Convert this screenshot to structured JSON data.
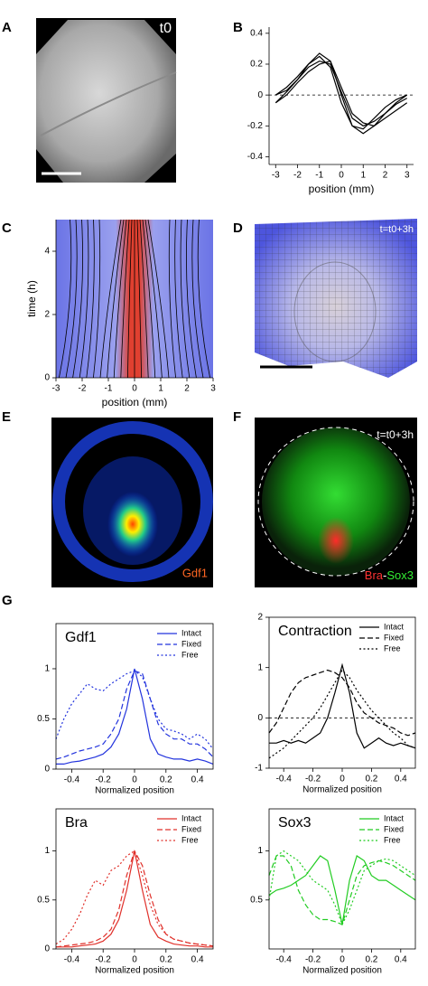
{
  "figure": {
    "panel_labels": [
      "A",
      "B",
      "C",
      "D",
      "E",
      "F",
      "G"
    ],
    "image_labels": {
      "a_time": "t0",
      "d_time": "t=t0+3h",
      "e_marker": "Gdf1",
      "f_time": "t=t0+3h",
      "f_bra": "Bra",
      "f_sep": "-",
      "f_sox3": "Sox3"
    }
  },
  "chart_data": [
    {
      "type": "line",
      "xlabel": "position (mm)",
      "x": [
        -3,
        -2.5,
        -2,
        -1.5,
        -1,
        -0.5,
        0,
        0.5,
        1,
        1.5,
        2,
        2.5,
        3
      ],
      "series": [
        {
          "color": "#000000",
          "values": [
            -0.05,
            0.02,
            0.1,
            0.2,
            0.27,
            0.22,
            0.0,
            -0.2,
            -0.25,
            -0.2,
            -0.12,
            -0.05,
            0.0
          ]
        },
        {
          "color": "#000000",
          "values": [
            0.0,
            0.05,
            0.12,
            0.2,
            0.25,
            0.18,
            -0.05,
            -0.2,
            -0.22,
            -0.15,
            -0.08,
            -0.03,
            0.0
          ]
        },
        {
          "color": "#000000",
          "values": [
            0.0,
            0.03,
            0.1,
            0.18,
            0.22,
            0.2,
            0.02,
            -0.15,
            -0.2,
            -0.17,
            -0.12,
            -0.06,
            -0.02
          ]
        },
        {
          "color": "#000000",
          "values": [
            -0.05,
            0.0,
            0.08,
            0.15,
            0.2,
            0.22,
            0.05,
            -0.12,
            -0.18,
            -0.2,
            -0.15,
            -0.1,
            -0.05
          ]
        }
      ],
      "xlim": [
        -3.3,
        3.3
      ],
      "xticks": [
        -3,
        -2,
        -1,
        0,
        1,
        2,
        3
      ],
      "ylim": [
        -0.45,
        0.44
      ],
      "yticks": [
        -0.4,
        -0.2,
        0,
        0.2,
        0.4
      ],
      "reference_line": 0
    },
    {
      "type": "heatmap",
      "xlabel": "position (mm)",
      "ylabel": "time (h)",
      "xlim": [
        -3,
        3
      ],
      "xticks": [
        -3,
        -2,
        -1,
        0,
        1,
        2,
        3
      ],
      "ylim": [
        0,
        5
      ],
      "yticks": [
        0,
        2,
        4
      ]
    },
    {
      "type": "line",
      "title": "Gdf1",
      "title_color": "#3b3bdc",
      "xlabel": "Normalized position",
      "x": [
        -0.5,
        -0.45,
        -0.4,
        -0.35,
        -0.3,
        -0.25,
        -0.2,
        -0.15,
        -0.1,
        -0.05,
        0,
        0.05,
        0.1,
        0.15,
        0.2,
        0.25,
        0.3,
        0.35,
        0.4,
        0.45,
        0.5
      ],
      "series": [
        {
          "name": "Intact",
          "color": "#2233dd",
          "style": "solid",
          "values": [
            0.05,
            0.05,
            0.07,
            0.08,
            0.1,
            0.12,
            0.15,
            0.22,
            0.35,
            0.6,
            1.0,
            0.7,
            0.3,
            0.15,
            0.12,
            0.1,
            0.1,
            0.08,
            0.1,
            0.08,
            0.05
          ]
        },
        {
          "name": "Fixed",
          "color": "#2233dd",
          "style": "dashed",
          "values": [
            0.1,
            0.12,
            0.15,
            0.18,
            0.2,
            0.22,
            0.25,
            0.35,
            0.5,
            0.8,
            0.98,
            0.95,
            0.7,
            0.45,
            0.35,
            0.3,
            0.3,
            0.25,
            0.25,
            0.2,
            0.12
          ]
        },
        {
          "name": "Free",
          "color": "#2233dd",
          "style": "dotted",
          "values": [
            0.3,
            0.5,
            0.65,
            0.75,
            0.85,
            0.8,
            0.78,
            0.85,
            0.9,
            0.95,
            0.98,
            0.92,
            0.7,
            0.5,
            0.4,
            0.38,
            0.35,
            0.3,
            0.35,
            0.3,
            0.2
          ]
        }
      ],
      "xlim": [
        -0.5,
        0.5
      ],
      "xticks": [
        -0.4,
        -0.2,
        0,
        0.2,
        0.4
      ],
      "ylim": [
        0,
        1.45
      ],
      "yticks": [
        0,
        0.5,
        1
      ]
    },
    {
      "type": "line",
      "title": "Contraction",
      "title_color": "#000000",
      "xlabel": "Normalized position",
      "x": [
        -0.5,
        -0.45,
        -0.4,
        -0.35,
        -0.3,
        -0.25,
        -0.2,
        -0.15,
        -0.1,
        -0.05,
        0,
        0.05,
        0.1,
        0.15,
        0.2,
        0.25,
        0.3,
        0.35,
        0.4,
        0.45,
        0.5
      ],
      "series": [
        {
          "name": "Intact",
          "color": "#000000",
          "style": "solid",
          "values": [
            -0.5,
            -0.5,
            -0.45,
            -0.5,
            -0.45,
            -0.5,
            -0.4,
            -0.3,
            0.0,
            0.5,
            1.05,
            0.5,
            -0.3,
            -0.6,
            -0.5,
            -0.4,
            -0.5,
            -0.55,
            -0.5,
            -0.55,
            -0.6
          ]
        },
        {
          "name": "Fixed",
          "color": "#000000",
          "style": "dashed",
          "values": [
            -0.3,
            -0.1,
            0.2,
            0.5,
            0.7,
            0.8,
            0.85,
            0.9,
            0.95,
            0.9,
            0.8,
            0.6,
            0.3,
            0.1,
            0.0,
            -0.1,
            -0.15,
            -0.2,
            -0.3,
            -0.35,
            -0.3
          ]
        },
        {
          "name": "Free",
          "color": "#000000",
          "style": "dotted",
          "values": [
            -0.8,
            -0.7,
            -0.6,
            -0.45,
            -0.3,
            -0.15,
            0.0,
            0.2,
            0.45,
            0.7,
            0.95,
            0.8,
            0.55,
            0.35,
            0.15,
            0.0,
            -0.15,
            -0.3,
            -0.4,
            -0.55,
            -0.6
          ]
        }
      ],
      "xlim": [
        -0.5,
        0.5
      ],
      "xticks": [
        -0.4,
        -0.2,
        0,
        0.2,
        0.4
      ],
      "ylim": [
        -1,
        2
      ],
      "yticks": [
        -1,
        0,
        1,
        2
      ],
      "reference_line": 0
    },
    {
      "type": "line",
      "title": "Bra",
      "title_color": "#e0302a",
      "xlabel": "Normalized position",
      "x": [
        -0.5,
        -0.45,
        -0.4,
        -0.35,
        -0.3,
        -0.25,
        -0.2,
        -0.15,
        -0.1,
        -0.05,
        0,
        0.05,
        0.1,
        0.15,
        0.2,
        0.25,
        0.3,
        0.35,
        0.4,
        0.45,
        0.5
      ],
      "series": [
        {
          "name": "Intact",
          "color": "#e0302a",
          "style": "solid",
          "values": [
            0.02,
            0.02,
            0.02,
            0.03,
            0.04,
            0.05,
            0.08,
            0.15,
            0.3,
            0.6,
            1.0,
            0.6,
            0.25,
            0.12,
            0.08,
            0.05,
            0.04,
            0.03,
            0.03,
            0.02,
            0.02
          ]
        },
        {
          "name": "Fixed",
          "color": "#e0302a",
          "style": "dashed",
          "values": [
            0.02,
            0.03,
            0.04,
            0.05,
            0.06,
            0.08,
            0.12,
            0.2,
            0.4,
            0.75,
            1.0,
            0.85,
            0.55,
            0.3,
            0.15,
            0.1,
            0.08,
            0.06,
            0.05,
            0.04,
            0.03
          ]
        },
        {
          "name": "Free",
          "color": "#e0302a",
          "style": "dotted",
          "values": [
            0.05,
            0.1,
            0.2,
            0.35,
            0.55,
            0.7,
            0.65,
            0.8,
            0.85,
            0.95,
            1.0,
            0.75,
            0.45,
            0.25,
            0.15,
            0.1,
            0.08,
            0.06,
            0.05,
            0.04,
            0.03
          ]
        }
      ],
      "xlim": [
        -0.5,
        0.5
      ],
      "xticks": [
        -0.4,
        -0.2,
        0,
        0.2,
        0.4
      ],
      "ylim": [
        0,
        1.43
      ],
      "yticks": [
        0,
        0.5,
        1
      ]
    },
    {
      "type": "line",
      "title": "Sox3",
      "title_color": "#22bb22",
      "xlabel": "Normalized position",
      "x": [
        -0.5,
        -0.45,
        -0.4,
        -0.35,
        -0.3,
        -0.25,
        -0.2,
        -0.15,
        -0.1,
        -0.05,
        0,
        0.05,
        0.1,
        0.15,
        0.2,
        0.25,
        0.3,
        0.35,
        0.4,
        0.45,
        0.5
      ],
      "series": [
        {
          "name": "Intact",
          "color": "#22cc22",
          "style": "solid",
          "values": [
            0.55,
            0.6,
            0.62,
            0.65,
            0.7,
            0.75,
            0.85,
            0.95,
            0.9,
            0.6,
            0.25,
            0.7,
            0.95,
            0.9,
            0.75,
            0.7,
            0.7,
            0.65,
            0.6,
            0.55,
            0.5
          ]
        },
        {
          "name": "Fixed",
          "color": "#22cc22",
          "style": "dashed",
          "values": [
            0.75,
            0.95,
            0.95,
            0.85,
            0.6,
            0.45,
            0.35,
            0.3,
            0.3,
            0.28,
            0.25,
            0.5,
            0.75,
            0.85,
            0.88,
            0.9,
            0.88,
            0.85,
            0.8,
            0.75,
            0.7
          ]
        },
        {
          "name": "Free",
          "color": "#22cc22",
          "style": "dotted",
          "values": [
            0.5,
            0.95,
            1.0,
            0.95,
            0.9,
            0.8,
            0.7,
            0.65,
            0.6,
            0.45,
            0.25,
            0.4,
            0.6,
            0.8,
            0.85,
            0.9,
            0.92,
            0.9,
            0.85,
            0.8,
            0.75
          ]
        }
      ],
      "xlim": [
        -0.5,
        0.5
      ],
      "xticks": [
        -0.4,
        -0.2,
        0,
        0.2,
        0.4
      ],
      "ylim": [
        0,
        1.43
      ],
      "yticks": [
        0.5,
        1
      ]
    }
  ]
}
